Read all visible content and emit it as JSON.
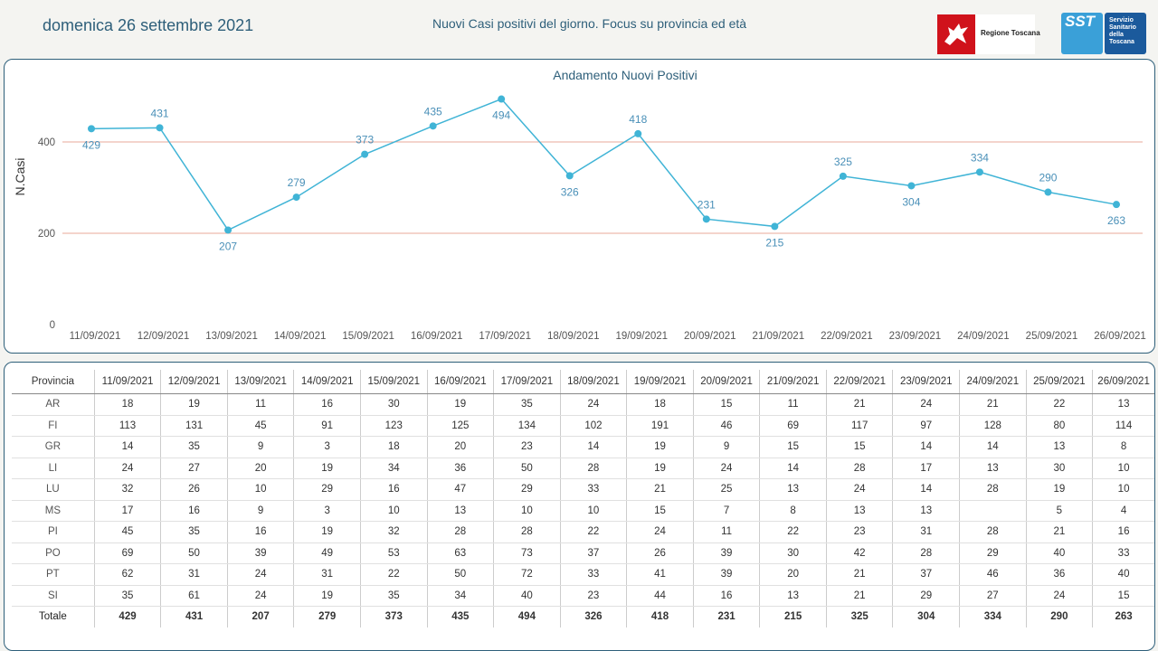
{
  "header": {
    "date": "domenica 26 settembre 2021",
    "title": "Nuovi Casi positivi del giorno. Focus su provincia ed età",
    "logo_regione": "Regione Toscana",
    "logo_sst": "SST",
    "logo_sst_lines": [
      "Servizio",
      "Sanitario",
      "della",
      "Toscana"
    ]
  },
  "colors": {
    "line": "#40b4d6",
    "ref_line": "#e8a89a",
    "axis_text": "#555555",
    "label_text": "#4a90b8"
  },
  "chart_data": {
    "type": "line",
    "title": "Andamento Nuovi Positivi",
    "xlabel": "",
    "ylabel": "N.Casi",
    "ylim": [
      0,
      500
    ],
    "yticks": [
      0,
      200,
      400
    ],
    "reference_lines": [
      200,
      400
    ],
    "x": [
      "11/09/2021",
      "12/09/2021",
      "13/09/2021",
      "14/09/2021",
      "15/09/2021",
      "16/09/2021",
      "17/09/2021",
      "18/09/2021",
      "19/09/2021",
      "20/09/2021",
      "21/09/2021",
      "22/09/2021",
      "23/09/2021",
      "24/09/2021",
      "25/09/2021",
      "26/09/2021"
    ],
    "series": [
      {
        "values": [
          429,
          431,
          207,
          279,
          373,
          435,
          494,
          326,
          418,
          231,
          215,
          325,
          304,
          334,
          290,
          263
        ]
      }
    ],
    "label_position": [
      "below",
      "above",
      "below",
      "above",
      "above",
      "above",
      "below",
      "below",
      "above",
      "above",
      "below",
      "above",
      "below",
      "above",
      "above",
      "below"
    ]
  },
  "table": {
    "corner": "Provincia",
    "columns": [
      "11/09/2021",
      "12/09/2021",
      "13/09/2021",
      "14/09/2021",
      "15/09/2021",
      "16/09/2021",
      "17/09/2021",
      "18/09/2021",
      "19/09/2021",
      "20/09/2021",
      "21/09/2021",
      "22/09/2021",
      "23/09/2021",
      "24/09/2021",
      "25/09/2021",
      "26/09/2021"
    ],
    "rows": [
      {
        "prov": "AR",
        "values": [
          "18",
          "19",
          "11",
          "16",
          "30",
          "19",
          "35",
          "24",
          "18",
          "15",
          "11",
          "21",
          "24",
          "21",
          "22",
          "13"
        ]
      },
      {
        "prov": "FI",
        "values": [
          "113",
          "131",
          "45",
          "91",
          "123",
          "125",
          "134",
          "102",
          "191",
          "46",
          "69",
          "117",
          "97",
          "128",
          "80",
          "114"
        ]
      },
      {
        "prov": "GR",
        "values": [
          "14",
          "35",
          "9",
          "3",
          "18",
          "20",
          "23",
          "14",
          "19",
          "9",
          "15",
          "15",
          "14",
          "14",
          "13",
          "8"
        ]
      },
      {
        "prov": "LI",
        "values": [
          "24",
          "27",
          "20",
          "19",
          "34",
          "36",
          "50",
          "28",
          "19",
          "24",
          "14",
          "28",
          "17",
          "13",
          "30",
          "10"
        ]
      },
      {
        "prov": "LU",
        "values": [
          "32",
          "26",
          "10",
          "29",
          "16",
          "47",
          "29",
          "33",
          "21",
          "25",
          "13",
          "24",
          "14",
          "28",
          "19",
          "10"
        ]
      },
      {
        "prov": "MS",
        "values": [
          "17",
          "16",
          "9",
          "3",
          "10",
          "13",
          "10",
          "10",
          "15",
          "7",
          "8",
          "13",
          "13",
          "",
          "5",
          "4"
        ]
      },
      {
        "prov": "PI",
        "values": [
          "45",
          "35",
          "16",
          "19",
          "32",
          "28",
          "28",
          "22",
          "24",
          "11",
          "22",
          "23",
          "31",
          "28",
          "21",
          "16"
        ]
      },
      {
        "prov": "PO",
        "values": [
          "69",
          "50",
          "39",
          "49",
          "53",
          "63",
          "73",
          "37",
          "26",
          "39",
          "30",
          "42",
          "28",
          "29",
          "40",
          "33"
        ]
      },
      {
        "prov": "PT",
        "values": [
          "62",
          "31",
          "24",
          "31",
          "22",
          "50",
          "72",
          "33",
          "41",
          "39",
          "20",
          "21",
          "37",
          "46",
          "36",
          "40"
        ]
      },
      {
        "prov": "SI",
        "values": [
          "35",
          "61",
          "24",
          "19",
          "35",
          "34",
          "40",
          "23",
          "44",
          "16",
          "13",
          "21",
          "29",
          "27",
          "24",
          "15"
        ]
      }
    ],
    "total": {
      "label": "Totale",
      "values": [
        "429",
        "431",
        "207",
        "279",
        "373",
        "435",
        "494",
        "326",
        "418",
        "231",
        "215",
        "325",
        "304",
        "334",
        "290",
        "263"
      ]
    }
  }
}
